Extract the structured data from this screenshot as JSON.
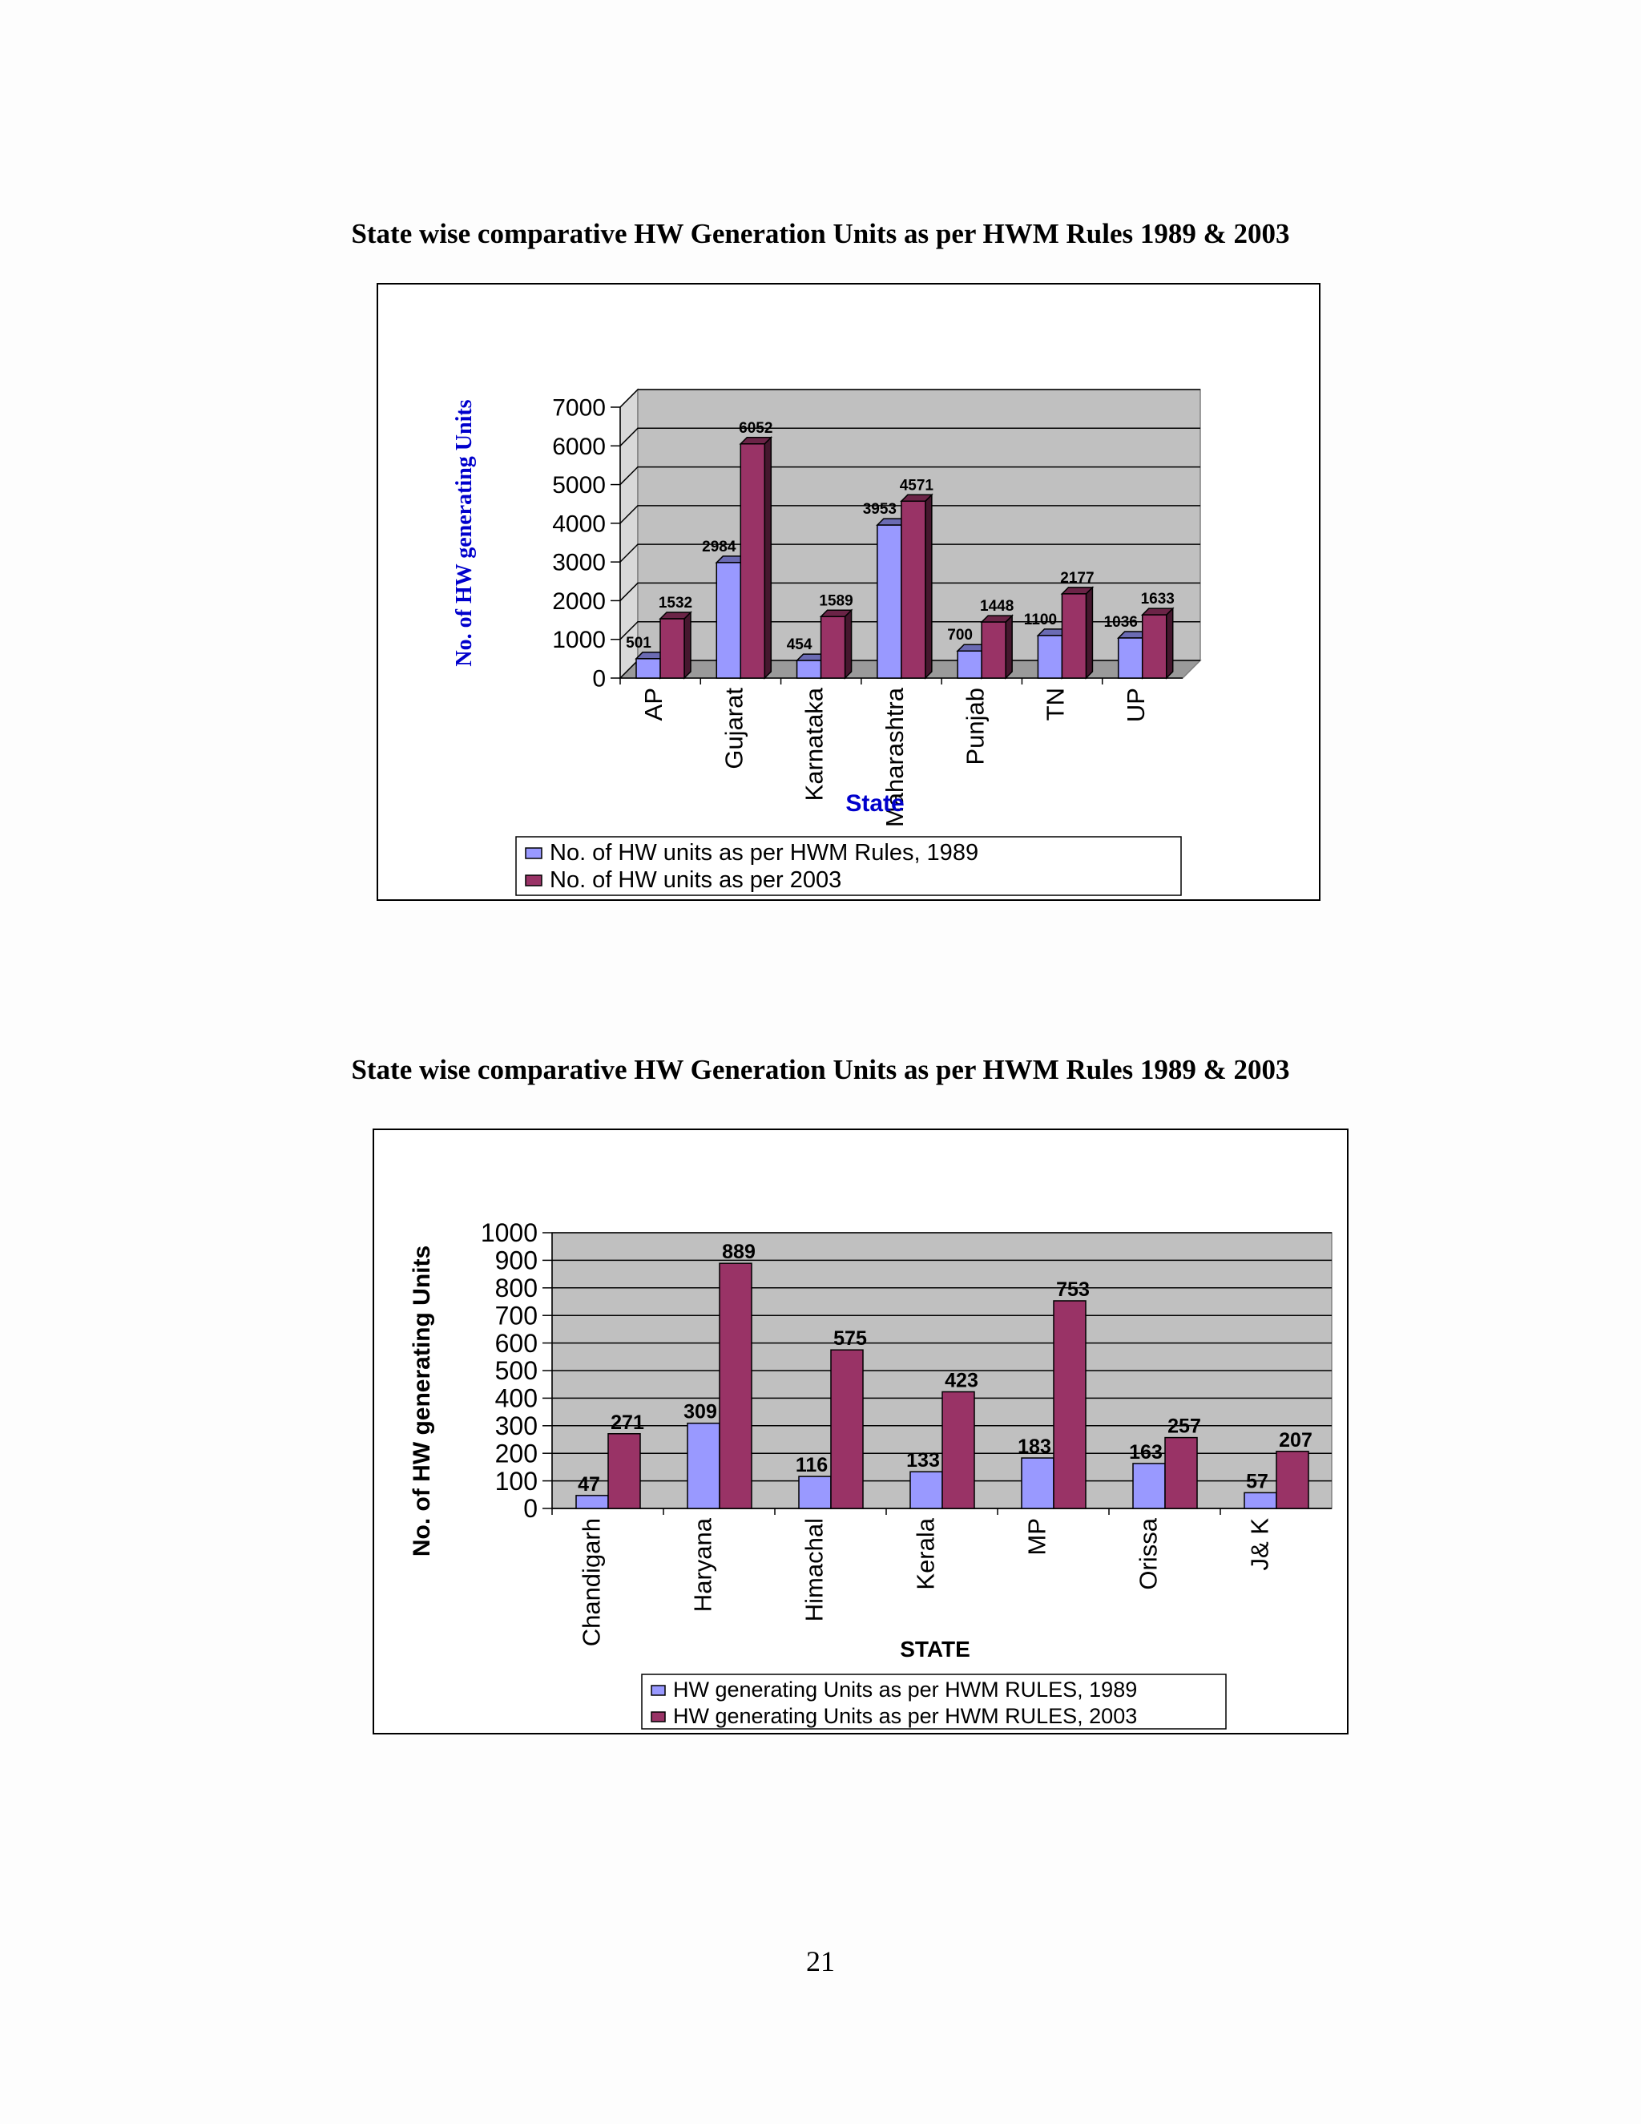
{
  "page": {
    "number": "21"
  },
  "chart_data": [
    {
      "type": "bar",
      "title": "State wise comparative HW Generation Units as per HWM Rules  1989 &  2003",
      "xlabel": "State",
      "ylabel": "No. of HW generating Units",
      "ylim": [
        0,
        7000
      ],
      "yticks": [
        "0",
        "1000",
        "2000",
        "3000",
        "4000",
        "5000",
        "6000",
        "7000"
      ],
      "categories": [
        "AP",
        "Gujarat",
        "Karnataka",
        "Maharashtra",
        "Punjab",
        "TN",
        "UP"
      ],
      "series": [
        {
          "name": "No. of HW units as per HWM Rules, 1989",
          "color": "#9999ff",
          "values": [
            501,
            2984,
            454,
            3953,
            700,
            1100,
            1036
          ]
        },
        {
          "name": "No. of HW units as per 2003",
          "color": "#993366",
          "values": [
            1532,
            6052,
            1589,
            4571,
            1448,
            2177,
            1633
          ]
        }
      ],
      "style": {
        "plot_bg": "#c0c0c0",
        "ylabel_color": "#0000cc",
        "xlabel_color": "#0000cc",
        "grid": true,
        "three_d": true,
        "legend": "bottom"
      }
    },
    {
      "type": "bar",
      "title": "State wise comparative HW Generation Units as per HWM Rules  1989 &  2003",
      "xlabel": "STATE",
      "ylabel": "No. of HW generating Units",
      "ylim": [
        0,
        1000
      ],
      "yticks": [
        "0",
        "100",
        "200",
        "300",
        "400",
        "500",
        "600",
        "700",
        "800",
        "900",
        "1000"
      ],
      "categories": [
        "Chandigarh",
        "Haryana",
        "Himachal",
        "Kerala",
        "MP",
        "Orissa",
        "J& K"
      ],
      "series": [
        {
          "name": "HW generating Units as per HWM RULES, 1989",
          "color": "#9999ff",
          "values": [
            47,
            309,
            116,
            133,
            183,
            163,
            57
          ]
        },
        {
          "name": "HW generating Units as per HWM RULES, 2003",
          "color": "#993366",
          "values": [
            271,
            889,
            575,
            423,
            753,
            257,
            207
          ]
        }
      ],
      "style": {
        "plot_bg": "#c0c0c0",
        "ylabel_color": "#000000",
        "xlabel_color": "#000000",
        "grid": true,
        "three_d": false,
        "legend": "bottom"
      }
    }
  ]
}
